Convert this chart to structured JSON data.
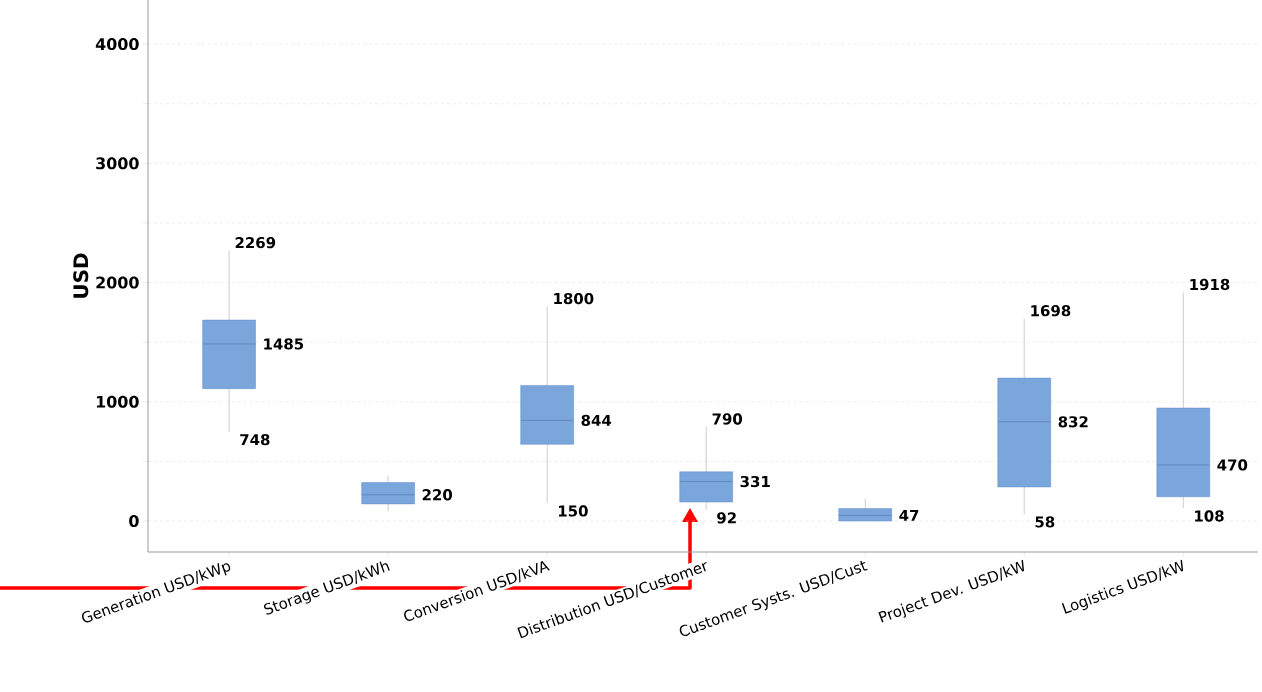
{
  "chart_data": {
    "type": "box",
    "ylabel": "USD",
    "categories": [
      "Generation USD/kWp",
      "Storage USD/kWh",
      "Conversion USD/kVA",
      "Distribution USD/Customer",
      "Customer Systs. USD/Cust",
      "Project Dev. USD/kW",
      "Logistics USD/kW"
    ],
    "boxes": [
      {
        "low": 748,
        "q1": 1110,
        "median": 1485,
        "q3": 1686,
        "high": 2269
      },
      {
        "low": 84,
        "q1": 143,
        "median": 220,
        "q3": 323,
        "high": 380
      },
      {
        "low": 150,
        "q1": 643,
        "median": 844,
        "q3": 1137,
        "high": 1800
      },
      {
        "low": 92,
        "q1": 159,
        "median": 331,
        "q3": 413,
        "high": 790
      },
      {
        "low": 0,
        "q1": 0,
        "median": 47,
        "q3": 104,
        "high": 184
      },
      {
        "low": 58,
        "q1": 285,
        "median": 832,
        "q3": 1199,
        "high": 1698
      },
      {
        "low": 108,
        "q1": 203,
        "median": 470,
        "q3": 948,
        "high": 1918
      }
    ],
    "color": "#7aa6dc",
    "ylim": [
      -260,
      4370
    ],
    "yticks": [
      0,
      {
        "value": 500,
        "label": null
      },
      1000,
      {
        "value": 1500,
        "label": null
      },
      2000,
      {
        "value": 2500,
        "label": null
      },
      3000,
      {
        "value": 3500,
        "label": null
      },
      4000
    ],
    "grid": "y",
    "annotations": [
      {
        "text": "2269",
        "x": "Generation USD/kWp",
        "y": 2269
      },
      {
        "text": "1485",
        "x": "Generation USD/kWp",
        "y": 1485
      },
      {
        "text": "748",
        "x": "Generation USD/kWp",
        "y": 748
      },
      {
        "text": "220",
        "x": "Storage USD/kWh",
        "y": 220
      },
      {
        "text": "1800",
        "x": "Conversion USD/kVA",
        "y": 1800
      },
      {
        "text": "844",
        "x": "Conversion USD/kVA",
        "y": 844
      },
      {
        "text": "150",
        "x": "Conversion USD/kVA",
        "y": 150
      },
      {
        "text": "790",
        "x": "Distribution USD/Customer",
        "y": 790
      },
      {
        "text": "331",
        "x": "Distribution USD/Customer",
        "y": 331
      },
      {
        "text": "92",
        "x": "Distribution USD/Customer",
        "y": 92
      },
      {
        "text": "47",
        "x": "Customer Systs. USD/Cust",
        "y": 47
      },
      {
        "text": "1698",
        "x": "Project Dev. USD/kW",
        "y": 1698
      },
      {
        "text": "832",
        "x": "Project Dev. USD/kW",
        "y": 832
      },
      {
        "text": "58",
        "x": "Project Dev. USD/kW",
        "y": 58
      },
      {
        "text": "1918",
        "x": "Logistics USD/kW",
        "y": 1918
      },
      {
        "text": "470",
        "x": "Logistics USD/kW",
        "y": 470
      },
      {
        "text": "108",
        "x": "Logistics USD/kW",
        "y": 108
      }
    ]
  }
}
